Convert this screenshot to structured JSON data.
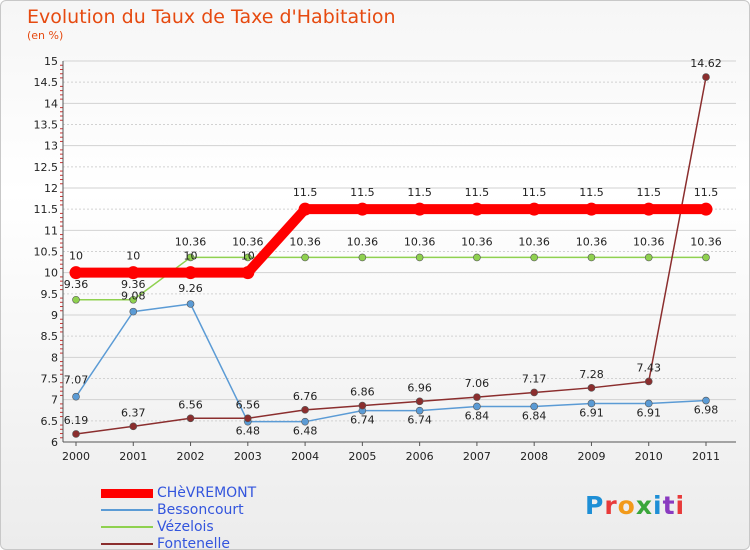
{
  "header": {
    "title": "Evolution du Taux de Taxe d'Habitation",
    "subtitle": "(en %)"
  },
  "logo": {
    "text": "Proxiti",
    "colors": [
      "#1e8fd6",
      "#e83a3a",
      "#f29a1a",
      "#3aa63a",
      "#1e8fd6",
      "#8a3ac0",
      "#e83a3a"
    ]
  },
  "chart_data": {
    "type": "line",
    "title": "Evolution du Taux de Taxe d'Habitation",
    "ylabel": "(en %)",
    "xlabel": "",
    "x": [
      "2000",
      "2001",
      "2002",
      "2003",
      "2004",
      "2005",
      "2006",
      "2007",
      "2008",
      "2009",
      "2010",
      "2011"
    ],
    "ylim": [
      6,
      15
    ],
    "yticks": [
      "6",
      "6.5",
      "7",
      "7.5",
      "8",
      "8.5",
      "9",
      "9.5",
      "10",
      "10.5",
      "11",
      "11.5",
      "12",
      "12.5",
      "13",
      "13.5",
      "14",
      "14.5",
      "15"
    ],
    "grid": "horizontal",
    "legend": "bottom-left",
    "series": [
      {
        "name": "CHèVREMONT",
        "color": "#ff0000",
        "values": [
          10,
          10,
          10,
          10,
          11.5,
          11.5,
          11.5,
          11.5,
          11.5,
          11.5,
          11.5,
          11.5
        ],
        "labels": [
          "10",
          "10",
          "10",
          "10",
          "11.5",
          "11.5",
          "11.5",
          "11.5",
          "11.5",
          "11.5",
          "11.5",
          "11.5"
        ]
      },
      {
        "name": "Bessoncourt",
        "color": "#5b9bd5",
        "values": [
          7.07,
          9.08,
          9.26,
          6.48,
          6.48,
          6.74,
          6.74,
          6.84,
          6.84,
          6.91,
          6.91,
          6.98
        ],
        "labels": [
          "7.07",
          "9.08",
          "9.26",
          "6.48",
          "6.48",
          "6.74",
          "6.74",
          "6.84",
          "6.84",
          "6.91",
          "6.91",
          "6.98"
        ]
      },
      {
        "name": "Vézelois",
        "color": "#8fd14f",
        "values": [
          9.36,
          9.36,
          10.36,
          10.36,
          10.36,
          10.36,
          10.36,
          10.36,
          10.36,
          10.36,
          10.36,
          10.36
        ],
        "labels": [
          "9.36",
          "9.36",
          "10.36",
          "10.36",
          "10.36",
          "10.36",
          "10.36",
          "10.36",
          "10.36",
          "10.36",
          "10.36",
          "10.36"
        ]
      },
      {
        "name": "Fontenelle",
        "color": "#8b2e2e",
        "values": [
          6.19,
          6.37,
          6.56,
          6.56,
          6.76,
          6.86,
          6.96,
          7.06,
          7.17,
          7.28,
          7.43,
          14.62
        ],
        "labels": [
          "6.19",
          "6.37",
          "6.56",
          "6.56",
          "6.76",
          "6.86",
          "6.96",
          "7.06",
          "7.17",
          "7.28",
          "7.43",
          "14.62"
        ]
      }
    ]
  }
}
